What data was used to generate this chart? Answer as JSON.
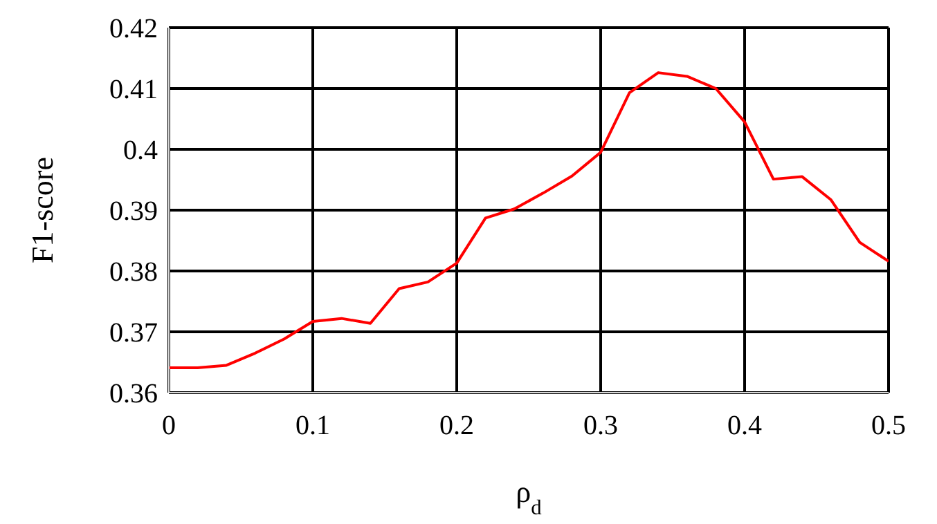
{
  "chart_data": {
    "type": "line",
    "xlabel": "ρ$_{d}$",
    "ylabel": "F1-score",
    "x": [
      0,
      0.02,
      0.04,
      0.06,
      0.08,
      0.1,
      0.12,
      0.14,
      0.16,
      0.18,
      0.2,
      0.22,
      0.24,
      0.26,
      0.28,
      0.3,
      0.32,
      0.34,
      0.36,
      0.38,
      0.4,
      0.42,
      0.44,
      0.46,
      0.48,
      0.5
    ],
    "series": [
      {
        "color": "#ff0000",
        "values": [
          0.3641,
          0.3641,
          0.3645,
          0.3665,
          0.3688,
          0.3717,
          0.3722,
          0.3714,
          0.3771,
          0.3782,
          0.3813,
          0.3887,
          0.3902,
          0.3928,
          0.3956,
          0.3995,
          0.4093,
          0.4126,
          0.412,
          0.41,
          0.4045,
          0.3951,
          0.3955,
          0.3917,
          0.3847,
          0.3816
        ]
      }
    ],
    "xlim": [
      0,
      0.5
    ],
    "xticks": [
      0,
      0.1,
      0.2,
      0.3,
      0.4,
      0.5
    ],
    "ylim": [
      0.36,
      0.42
    ],
    "yticks": [
      0.36,
      0.37,
      0.38,
      0.39,
      0.4,
      0.41,
      0.42
    ],
    "grid": true,
    "marker": "none",
    "line_style": "solid"
  }
}
